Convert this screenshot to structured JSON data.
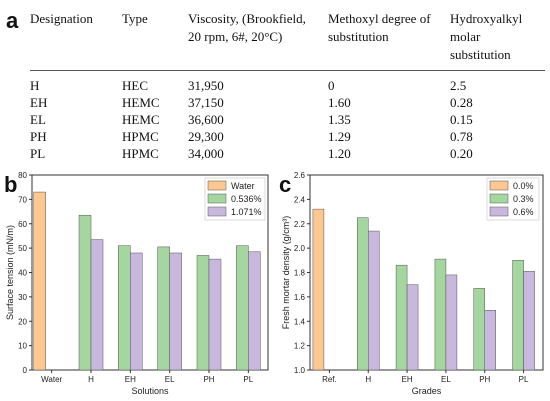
{
  "panel_labels": {
    "a": "a",
    "b": "b",
    "c": "c"
  },
  "table": {
    "headers": [
      "Designation",
      "Type",
      "Viscosity, (Brookfield, 20 rpm, 6#, 20°C)",
      "Methoxyl degree of substitution",
      "Hydroxyalkyl molar substitution"
    ],
    "rows": [
      [
        "H",
        "HEC",
        "31,950",
        "0",
        "2.5"
      ],
      [
        "EH",
        "HEMC",
        "37,150",
        "1.60",
        "0.28"
      ],
      [
        "EL",
        "HEMC",
        "36,600",
        "1.35",
        "0.15"
      ],
      [
        "PH",
        "HPMC",
        "29,300",
        "1.29",
        "0.78"
      ],
      [
        "PL",
        "HPMC",
        "34,000",
        "1.20",
        "0.20"
      ]
    ]
  },
  "chart_data": [
    {
      "type": "bar",
      "categories": [
        "Water",
        "H",
        "EH",
        "EL",
        "PH",
        "PL"
      ],
      "series": [
        {
          "name": "Water",
          "color": "#fdc792",
          "values": [
            73,
            null,
            null,
            null,
            null,
            null
          ]
        },
        {
          "name": "0.536%",
          "color": "#a5d6a0",
          "values": [
            null,
            63.5,
            51,
            50.5,
            47,
            51
          ]
        },
        {
          "name": "1.071%",
          "color": "#c9b8de",
          "values": [
            null,
            53.5,
            48,
            48,
            45.5,
            48.5
          ]
        }
      ],
      "xlabel": "Solutions",
      "ylabel": "Surface tension (mN/m)",
      "ylim": [
        0,
        80
      ],
      "yticks": [
        "0",
        "10",
        "20",
        "30",
        "40",
        "50",
        "60",
        "70",
        "80"
      ],
      "legend": "top-right",
      "grid": false
    },
    {
      "type": "bar",
      "categories": [
        "Ref.",
        "H",
        "EH",
        "EL",
        "PH",
        "PL"
      ],
      "series": [
        {
          "name": "0.0%",
          "color": "#fdc792",
          "values": [
            2.32,
            null,
            null,
            null,
            null,
            null
          ]
        },
        {
          "name": "0.3%",
          "color": "#a5d6a0",
          "values": [
            null,
            2.25,
            1.86,
            1.91,
            1.67,
            1.9
          ]
        },
        {
          "name": "0.6%",
          "color": "#c9b8de",
          "values": [
            null,
            2.14,
            1.7,
            1.78,
            1.49,
            1.81
          ]
        }
      ],
      "xlabel": "Grades",
      "ylabel": "Fresh mortar density (g/cm³)",
      "ylim": [
        1.0,
        2.6
      ],
      "yticks": [
        "1.0",
        "1.2",
        "1.4",
        "1.6",
        "1.8",
        "2.0",
        "2.2",
        "2.4",
        "2.6"
      ],
      "legend": "top-right",
      "grid": false
    }
  ]
}
